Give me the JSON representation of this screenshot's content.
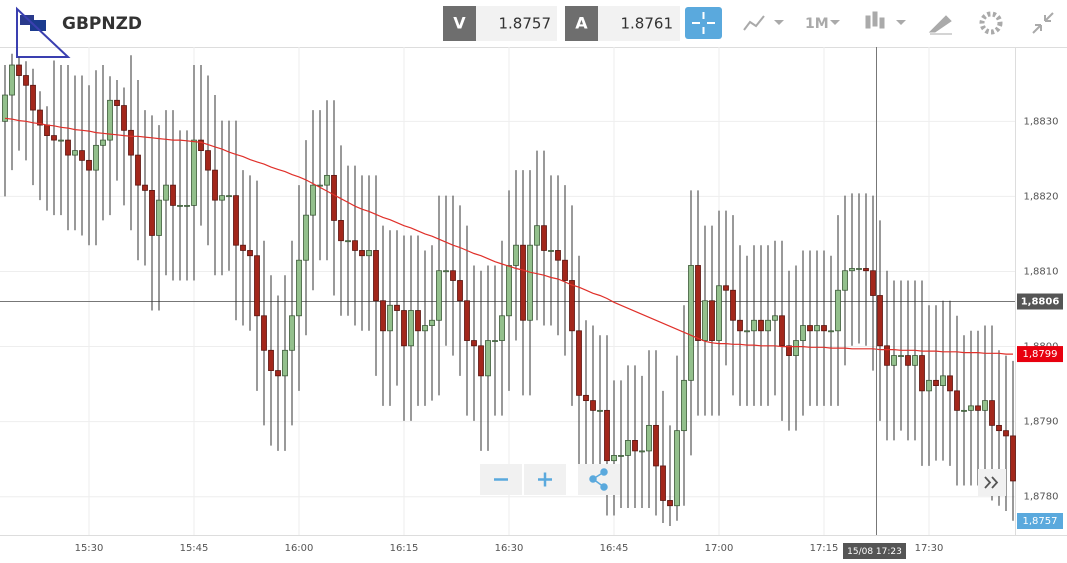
{
  "toolbar": {
    "symbol": "GBPNZD",
    "bid_label": "V",
    "bid": 1.8757,
    "ask_label": "A",
    "ask": 1.8761,
    "timeframe": "1M"
  },
  "chart_data": {
    "type": "candlestick",
    "categories": [
      null,
      null,
      null,
      null,
      null,
      null,
      null,
      null,
      null,
      null,
      null,
      null,
      "15:30",
      null,
      null,
      null,
      null,
      null,
      null,
      null,
      null,
      null,
      null,
      null,
      null,
      null,
      null,
      "15:45",
      null,
      null,
      null,
      null,
      null,
      null,
      null,
      null,
      null,
      null,
      null,
      null,
      null,
      null,
      "16:00",
      null,
      null,
      null,
      null,
      null,
      null,
      null,
      null,
      null,
      null,
      null,
      null,
      null,
      null,
      "16:15",
      null,
      null,
      null,
      null,
      null,
      null,
      null,
      null,
      null,
      null,
      null,
      null,
      null,
      null,
      "16:30",
      null,
      null,
      null,
      null,
      null,
      null,
      null,
      null,
      null,
      null,
      null,
      null,
      null,
      null,
      "16:45",
      null,
      null,
      null,
      null,
      null,
      null,
      null,
      null,
      null,
      null,
      null,
      null,
      null,
      null,
      "17:00",
      null,
      null,
      null,
      null,
      null,
      null,
      null,
      null,
      null,
      null,
      null,
      null,
      null,
      null,
      "17:15",
      null,
      null,
      null,
      null,
      null,
      null,
      null,
      null,
      null,
      null,
      null,
      null,
      null,
      null,
      "17:30",
      null,
      null,
      null,
      null,
      null,
      null,
      null,
      null,
      null,
      null,
      null,
      null
    ],
    "ohlc": [
      [
        1.883,
        1.88375,
        1.882,
        1.88335
      ],
      [
        1.88335,
        1.8839,
        1.88235,
        1.88375
      ],
      [
        1.88375,
        1.88385,
        1.88261,
        1.88361
      ],
      [
        1.88361,
        1.8838,
        1.88248,
        1.88348
      ],
      [
        1.88348,
        1.8837,
        1.88215,
        1.88315
      ],
      [
        1.88315,
        1.8834,
        1.88195,
        1.88295
      ],
      [
        1.88295,
        1.8832,
        1.88181,
        1.88281
      ],
      [
        1.88281,
        1.88381,
        1.88175,
        1.88275
      ],
      [
        1.88275,
        1.88375,
        1.88175,
        1.88275
      ],
      [
        1.88275,
        1.88375,
        1.88155,
        1.88255
      ],
      [
        1.88255,
        1.88361,
        1.88155,
        1.88261
      ],
      [
        1.88261,
        1.88361,
        1.88148,
        1.88248
      ],
      [
        1.88248,
        1.88348,
        1.88135,
        1.88235
      ],
      [
        1.88235,
        1.88368,
        1.88135,
        1.88268
      ],
      [
        1.88268,
        1.88375,
        1.88168,
        1.88275
      ],
      [
        1.88275,
        1.8836,
        1.88175,
        1.88328
      ],
      [
        1.88328,
        1.88355,
        1.88221,
        1.88321
      ],
      [
        1.88321,
        1.88345,
        1.88188,
        1.88288
      ],
      [
        1.88288,
        1.88388,
        1.88155,
        1.88255
      ],
      [
        1.88255,
        1.88355,
        1.88115,
        1.88215
      ],
      [
        1.88215,
        1.88315,
        1.88108,
        1.88208
      ],
      [
        1.88208,
        1.88308,
        1.88048,
        1.88148
      ],
      [
        1.88148,
        1.88295,
        1.88048,
        1.88195
      ],
      [
        1.88195,
        1.88315,
        1.88095,
        1.88215
      ],
      [
        1.88215,
        1.88315,
        1.88088,
        1.88188
      ],
      [
        1.88188,
        1.88288,
        1.88088,
        1.88188
      ],
      [
        1.88188,
        1.88288,
        1.88088,
        1.88188
      ],
      [
        1.88188,
        1.88375,
        1.88088,
        1.88275
      ],
      [
        1.88275,
        1.88375,
        1.88161,
        1.88261
      ],
      [
        1.88261,
        1.88361,
        1.88135,
        1.88235
      ],
      [
        1.88235,
        1.88335,
        1.88095,
        1.88195
      ],
      [
        1.88195,
        1.88301,
        1.88095,
        1.88201
      ],
      [
        1.88201,
        1.88301,
        1.88101,
        1.88201
      ],
      [
        1.88201,
        1.88301,
        1.88035,
        1.88135
      ],
      [
        1.88135,
        1.88235,
        1.88028,
        1.88128
      ],
      [
        1.88128,
        1.88228,
        1.88021,
        1.88121
      ],
      [
        1.88121,
        1.88221,
        1.87941,
        1.88041
      ],
      [
        1.88041,
        1.88141,
        1.87895,
        1.87995
      ],
      [
        1.87995,
        1.88095,
        1.87868,
        1.87968
      ],
      [
        1.87968,
        1.88068,
        1.87861,
        1.87961
      ],
      [
        1.87961,
        1.88095,
        1.87861,
        1.87995
      ],
      [
        1.87995,
        1.88141,
        1.87895,
        1.88041
      ],
      [
        1.88041,
        1.88215,
        1.87941,
        1.88115
      ],
      [
        1.88115,
        1.88275,
        1.88015,
        1.88175
      ],
      [
        1.88175,
        1.88315,
        1.88075,
        1.88215
      ],
      [
        1.88215,
        1.88315,
        1.88115,
        1.88215
      ],
      [
        1.88215,
        1.88328,
        1.88115,
        1.88228
      ],
      [
        1.88228,
        1.88328,
        1.88068,
        1.88168
      ],
      [
        1.88168,
        1.88268,
        1.88041,
        1.88141
      ],
      [
        1.88141,
        1.88241,
        1.88041,
        1.88141
      ],
      [
        1.88141,
        1.88241,
        1.88028,
        1.88128
      ],
      [
        1.88128,
        1.88228,
        1.88021,
        1.88121
      ],
      [
        1.88121,
        1.88228,
        1.88021,
        1.88128
      ],
      [
        1.88128,
        1.88228,
        1.87961,
        1.88061
      ],
      [
        1.88061,
        1.88161,
        1.87921,
        1.88021
      ],
      [
        1.88021,
        1.88155,
        1.87921,
        1.88055
      ],
      [
        1.88055,
        1.88155,
        1.87948,
        1.88048
      ],
      [
        1.88048,
        1.88148,
        1.87901,
        1.88001
      ],
      [
        1.88001,
        1.88148,
        1.87901,
        1.88048
      ],
      [
        1.88048,
        1.88148,
        1.87921,
        1.88021
      ],
      [
        1.88021,
        1.88128,
        1.87921,
        1.88028
      ],
      [
        1.88028,
        1.88135,
        1.87928,
        1.88035
      ],
      [
        1.88035,
        1.88201,
        1.87935,
        1.88101
      ],
      [
        1.88101,
        1.88201,
        1.88001,
        1.88101
      ],
      [
        1.88101,
        1.88201,
        1.87988,
        1.88088
      ],
      [
        1.88088,
        1.88188,
        1.87961,
        1.88061
      ],
      [
        1.88061,
        1.88161,
        1.87908,
        1.88008
      ],
      [
        1.88008,
        1.88108,
        1.87901,
        1.88001
      ],
      [
        1.88001,
        1.88101,
        1.87861,
        1.87961
      ],
      [
        1.87961,
        1.88108,
        1.87861,
        1.88008
      ],
      [
        1.88008,
        1.88108,
        1.87908,
        1.88008
      ],
      [
        1.88008,
        1.88141,
        1.87908,
        1.88041
      ],
      [
        1.88041,
        1.88208,
        1.87941,
        1.88108
      ],
      [
        1.88108,
        1.88235,
        1.88008,
        1.88135
      ],
      [
        1.88135,
        1.88235,
        1.87935,
        1.88035
      ],
      [
        1.88035,
        1.88235,
        1.87935,
        1.88135
      ],
      [
        1.88135,
        1.88261,
        1.88035,
        1.88161
      ],
      [
        1.88161,
        1.88261,
        1.88028,
        1.88128
      ],
      [
        1.88128,
        1.88228,
        1.88028,
        1.88128
      ],
      [
        1.88128,
        1.88228,
        1.88015,
        1.88115
      ],
      [
        1.88115,
        1.88215,
        1.87988,
        1.88088
      ],
      [
        1.88088,
        1.88188,
        1.87921,
        1.88021
      ],
      [
        1.88021,
        1.88121,
        1.87835,
        1.87935
      ],
      [
        1.87935,
        1.88035,
        1.87828,
        1.87928
      ],
      [
        1.87928,
        1.88028,
        1.87815,
        1.87915
      ],
      [
        1.87915,
        1.88015,
        1.87815,
        1.87915
      ],
      [
        1.87915,
        1.88015,
        1.87775,
        1.87848
      ],
      [
        1.87848,
        1.87955,
        1.87775,
        1.87855
      ],
      [
        1.87855,
        1.87955,
        1.87785,
        1.87855
      ],
      [
        1.87855,
        1.87975,
        1.87785,
        1.87875
      ],
      [
        1.87875,
        1.87975,
        1.87785,
        1.87861
      ],
      [
        1.87861,
        1.87961,
        1.87785,
        1.87861
      ],
      [
        1.87861,
        1.87995,
        1.87785,
        1.87895
      ],
      [
        1.87895,
        1.87995,
        1.87775,
        1.87841
      ],
      [
        1.87841,
        1.87941,
        1.87765,
        1.87795
      ],
      [
        1.87795,
        1.87895,
        1.87761,
        1.87788
      ],
      [
        1.87788,
        1.87988,
        1.87768,
        1.87888
      ],
      [
        1.87888,
        1.88055,
        1.87788,
        1.87955
      ],
      [
        1.87955,
        1.88208,
        1.87855,
        1.88108
      ],
      [
        1.88108,
        1.88208,
        1.87908,
        1.88008
      ],
      [
        1.88008,
        1.88161,
        1.87908,
        1.88061
      ],
      [
        1.88061,
        1.88161,
        1.87908,
        1.88008
      ],
      [
        1.88008,
        1.88181,
        1.87908,
        1.88081
      ],
      [
        1.88081,
        1.88181,
        1.87975,
        1.88075
      ],
      [
        1.88075,
        1.88175,
        1.87935,
        1.88035
      ],
      [
        1.88035,
        1.88135,
        1.87921,
        1.88021
      ],
      [
        1.88021,
        1.88121,
        1.87921,
        1.88021
      ],
      [
        1.88021,
        1.88135,
        1.87921,
        1.88035
      ],
      [
        1.88035,
        1.88135,
        1.87921,
        1.88021
      ],
      [
        1.88021,
        1.88135,
        1.87921,
        1.88035
      ],
      [
        1.88035,
        1.88141,
        1.87935,
        1.88041
      ],
      [
        1.88041,
        1.88141,
        1.87901,
        1.88001
      ],
      [
        1.88001,
        1.88101,
        1.87888,
        1.87988
      ],
      [
        1.87988,
        1.88108,
        1.87888,
        1.88008
      ],
      [
        1.88008,
        1.88128,
        1.87908,
        1.88028
      ],
      [
        1.88028,
        1.88128,
        1.87921,
        1.88021
      ],
      [
        1.88021,
        1.88128,
        1.87921,
        1.88028
      ],
      [
        1.88028,
        1.88128,
        1.87921,
        1.88021
      ],
      [
        1.88021,
        1.88121,
        1.87921,
        1.88021
      ],
      [
        1.88021,
        1.88175,
        1.87921,
        1.88075
      ],
      [
        1.88075,
        1.88201,
        1.87975,
        1.88101
      ],
      [
        1.88101,
        1.88204,
        1.88001,
        1.88104
      ],
      [
        1.88104,
        1.88204,
        1.88004,
        1.88104
      ],
      [
        1.88104,
        1.88204,
        1.88001,
        1.88101
      ],
      [
        1.88101,
        1.88201,
        1.87968,
        1.88068
      ],
      [
        1.88068,
        1.88168,
        1.87901,
        1.88001
      ],
      [
        1.88001,
        1.88101,
        1.87875,
        1.87975
      ],
      [
        1.87975,
        1.88088,
        1.87875,
        1.87988
      ],
      [
        1.87988,
        1.88088,
        1.87888,
        1.87988
      ],
      [
        1.87988,
        1.88088,
        1.87875,
        1.87975
      ],
      [
        1.87975,
        1.88088,
        1.87875,
        1.87988
      ],
      [
        1.87988,
        1.88088,
        1.87841,
        1.87941
      ],
      [
        1.87941,
        1.88055,
        1.87841,
        1.87955
      ],
      [
        1.87955,
        1.88055,
        1.87848,
        1.87948
      ],
      [
        1.87948,
        1.88061,
        1.87848,
        1.87961
      ],
      [
        1.87961,
        1.88061,
        1.87841,
        1.87941
      ],
      [
        1.87941,
        1.88041,
        1.87815,
        1.87915
      ],
      [
        1.87915,
        1.88015,
        1.87815,
        1.87915
      ],
      [
        1.87915,
        1.88021,
        1.87815,
        1.87921
      ],
      [
        1.87921,
        1.88021,
        1.87815,
        1.87915
      ],
      [
        1.87915,
        1.88028,
        1.87815,
        1.87928
      ],
      [
        1.87928,
        1.88028,
        1.87795,
        1.87895
      ],
      [
        1.87895,
        1.87995,
        1.87788,
        1.87888
      ],
      [
        1.87888,
        1.87988,
        1.87781,
        1.87881
      ],
      [
        1.87881,
        1.87981,
        1.87768,
        1.87821
      ]
    ],
    "color_up": "#93c08c",
    "color_down": "#a3271b",
    "moving_average": {
      "color": "#e0302a",
      "values": [
        1.88304,
        1.88303,
        1.88301,
        1.883,
        1.88298,
        1.88297,
        1.88295,
        1.88294,
        1.88292,
        1.88291,
        1.88289,
        1.88288,
        1.88287,
        1.88285,
        1.88284,
        1.88283,
        1.88282,
        1.88281,
        1.8828,
        1.8828,
        1.88279,
        1.88278,
        1.88277,
        1.88276,
        1.88275,
        1.88275,
        1.88274,
        1.88273,
        1.88272,
        1.88269,
        1.88266,
        1.88263,
        1.88259,
        1.88256,
        1.88253,
        1.88249,
        1.88246,
        1.88243,
        1.88239,
        1.88236,
        1.88233,
        1.88229,
        1.88226,
        1.88222,
        1.88217,
        1.88212,
        1.88207,
        1.88202,
        1.88197,
        1.88192,
        1.88187,
        1.88183,
        1.8818,
        1.88176,
        1.88172,
        1.88169,
        1.88165,
        1.88161,
        1.88158,
        1.88154,
        1.8815,
        1.88147,
        1.88143,
        1.88139,
        1.88135,
        1.88132,
        1.88128,
        1.88124,
        1.88121,
        1.88117,
        1.88113,
        1.8811,
        1.88107,
        1.88104,
        1.88102,
        1.88099,
        1.88097,
        1.88095,
        1.88092,
        1.8809,
        1.88086,
        1.88082,
        1.88079,
        1.88075,
        1.88071,
        1.88068,
        1.88064,
        1.88059,
        1.88055,
        1.88051,
        1.88047,
        1.88043,
        1.88039,
        1.88035,
        1.88031,
        1.88027,
        1.88023,
        1.88019,
        1.88015,
        1.88011,
        1.88007,
        1.88005,
        1.88004,
        1.88004,
        1.88003,
        1.88003,
        1.88002,
        1.88002,
        1.88001,
        1.88001,
        1.88001,
        1.88,
        1.88,
        1.88,
        1.88,
        1.87999,
        1.87999,
        1.87999,
        1.87998,
        1.87998,
        1.87998,
        1.87997,
        1.87997,
        1.87997,
        1.87997,
        1.87996,
        1.87996,
        1.87996,
        1.87995,
        1.87995,
        1.87995,
        1.87994,
        1.87994,
        1.87994,
        1.87993,
        1.87993,
        1.87993,
        1.87992,
        1.87992,
        1.87992,
        1.87991,
        1.87991,
        1.87991,
        1.8799,
        1.8799
      ]
    },
    "ylim": [
      1.87749,
      1.88399
    ],
    "yticks": [
      {
        "value": 1.878,
        "label": "1,8780"
      },
      {
        "value": 1.879,
        "label": "1,8790"
      },
      {
        "value": 1.88,
        "label": "1,8800"
      },
      {
        "value": 1.881,
        "label": "1,8810"
      },
      {
        "value": 1.882,
        "label": "1,8820"
      },
      {
        "value": 1.883,
        "label": "1,8830"
      }
    ],
    "grid": true,
    "crosshair": {
      "time": "15/08 17:23",
      "price": {
        "value": 1.8806,
        "label": "1,8806"
      }
    },
    "price_markers": [
      {
        "value": 1.8799,
        "label": "1,8799",
        "color": "#e8000f"
      },
      {
        "value": 1.8757,
        "label": "1,8757",
        "color": "#5aa9dd"
      }
    ]
  }
}
